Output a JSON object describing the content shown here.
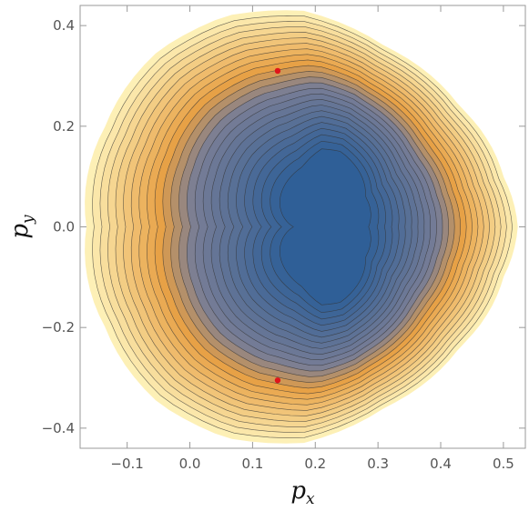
{
  "chart_data": {
    "type": "contour",
    "xlabel": "p",
    "xlabel_sub": "x",
    "ylabel": "p",
    "ylabel_sub": "y",
    "xlim": [
      -0.175,
      0.535
    ],
    "ylim": [
      -0.44,
      0.44
    ],
    "x_ticks": [
      -0.1,
      0.0,
      0.1,
      0.2,
      0.3,
      0.4,
      0.5
    ],
    "x_tick_labels": [
      "−0.1",
      "0.0",
      "0.1",
      "0.2",
      "0.3",
      "0.4",
      "0.5"
    ],
    "y_ticks": [
      -0.4,
      -0.2,
      0.0,
      0.2,
      0.4
    ],
    "y_tick_labels": [
      "−0.4",
      "−0.2",
      "0.0",
      "0.2",
      "0.4"
    ],
    "grid": false,
    "legend": "none",
    "color_inner": "#2f5f97",
    "color_mid": "#e7a045",
    "color_outer": "#fdf0b6",
    "contour_line_color": "#333333",
    "contour_count": 24,
    "contour_center": {
      "x": 0.21,
      "y": 0.0
    },
    "outer_boundary": [
      {
        "x": 0.523,
        "y": 0.0
      },
      {
        "x": 0.5,
        "y": 0.1
      },
      {
        "x": 0.43,
        "y": 0.24
      },
      {
        "x": 0.31,
        "y": 0.36
      },
      {
        "x": 0.18,
        "y": 0.43
      },
      {
        "x": 0.06,
        "y": 0.42
      },
      {
        "x": -0.05,
        "y": 0.35
      },
      {
        "x": -0.135,
        "y": 0.2
      },
      {
        "x": -0.165,
        "y": 0.0
      },
      {
        "x": -0.135,
        "y": -0.2
      },
      {
        "x": -0.05,
        "y": -0.35
      },
      {
        "x": 0.06,
        "y": -0.42
      },
      {
        "x": 0.18,
        "y": -0.43
      },
      {
        "x": 0.31,
        "y": -0.36
      },
      {
        "x": 0.43,
        "y": -0.24
      },
      {
        "x": 0.5,
        "y": -0.1
      }
    ],
    "inner_boundary": [
      {
        "x": 0.285,
        "y": 0.0
      },
      {
        "x": 0.28,
        "y": 0.06
      },
      {
        "x": 0.24,
        "y": 0.15
      },
      {
        "x": 0.21,
        "y": 0.155
      },
      {
        "x": 0.18,
        "y": 0.12
      },
      {
        "x": 0.165,
        "y": 0.0
      },
      {
        "x": 0.18,
        "y": -0.12
      },
      {
        "x": 0.21,
        "y": -0.155
      },
      {
        "x": 0.24,
        "y": -0.15
      },
      {
        "x": 0.28,
        "y": -0.06
      }
    ],
    "points": [
      {
        "x": 0.14,
        "y": 0.31,
        "color": "#e0151a"
      },
      {
        "x": 0.14,
        "y": -0.305,
        "color": "#e0151a"
      }
    ]
  }
}
